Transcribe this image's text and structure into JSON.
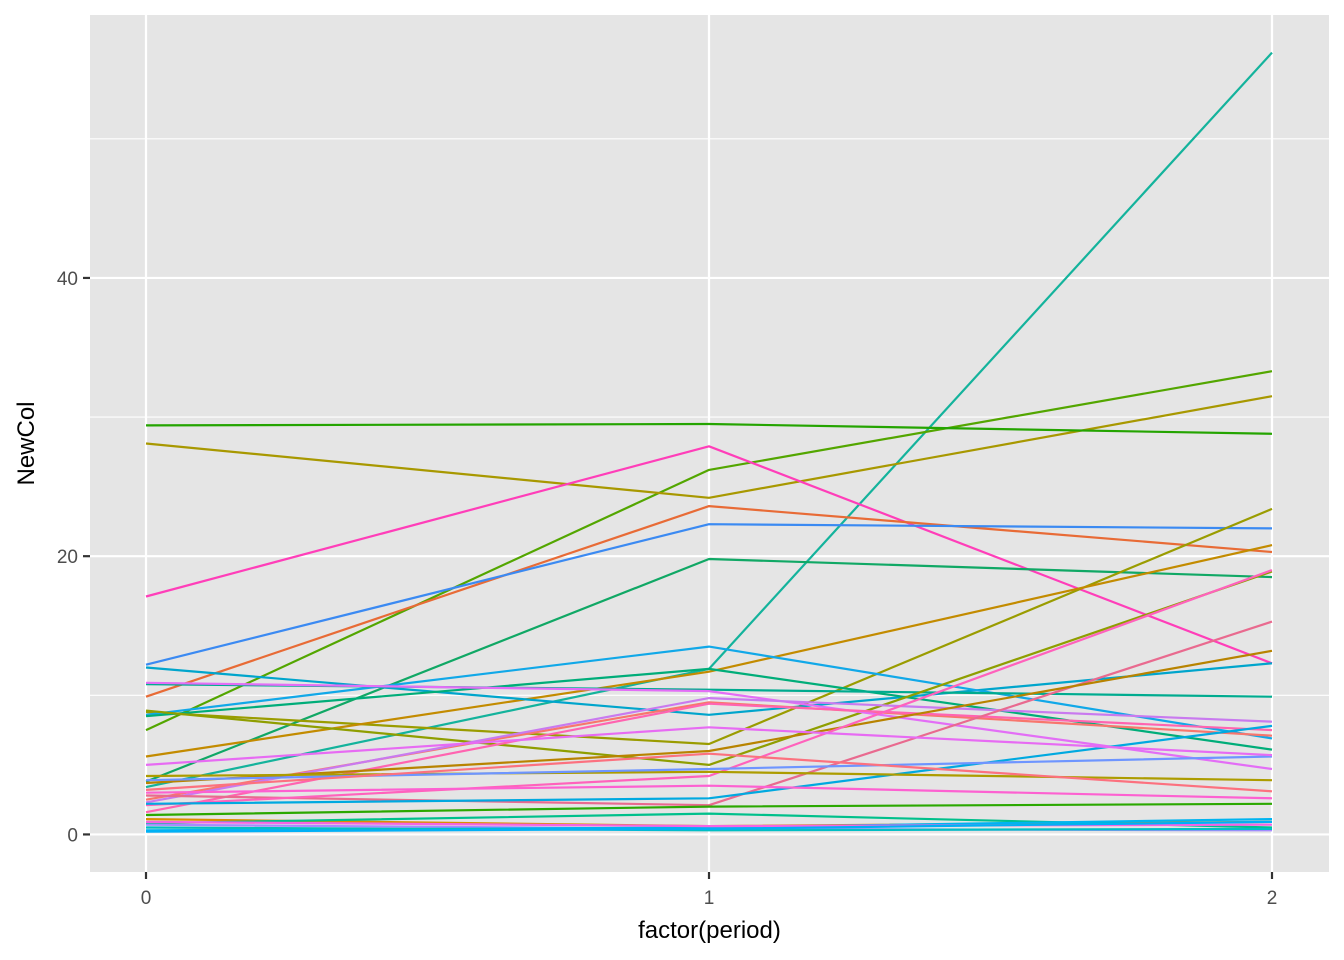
{
  "chart_data": {
    "type": "line",
    "title": "",
    "xlabel": "factor(period)",
    "ylabel": "NewCol",
    "categories": [
      "0",
      "1",
      "2"
    ],
    "ylim": [
      -2.7,
      58.9
    ],
    "yticks": [
      0,
      20,
      40
    ],
    "grid": true,
    "legend": "none",
    "colors": {
      "panel_background": "#e5e5e5",
      "grid_line": "#ffffff",
      "tick_mark": "#333333",
      "tick_label": "#4d4d4d"
    },
    "series": [
      {
        "color": "#14b39c",
        "values": [
          3.4,
          11.9,
          56.2
        ]
      },
      {
        "color": "#53a600",
        "values": [
          7.5,
          26.2,
          33.3
        ]
      },
      {
        "color": "#a89800",
        "values": [
          28.1,
          24.2,
          31.5
        ]
      },
      {
        "color": "#24a400",
        "values": [
          29.4,
          29.5,
          28.8
        ]
      },
      {
        "color": "#ff3eb9",
        "values": [
          17.1,
          27.9,
          12.3
        ]
      },
      {
        "color": "#e86b36",
        "values": [
          9.9,
          23.6,
          20.3
        ]
      },
      {
        "color": "#3b8af2",
        "values": [
          12.2,
          22.3,
          22.0
        ]
      },
      {
        "color": "#10a865",
        "values": [
          3.8,
          19.8,
          18.5
        ]
      },
      {
        "color": "#9a9c00",
        "values": [
          8.8,
          6.5,
          23.4
        ]
      },
      {
        "color": "#c38b00",
        "values": [
          5.6,
          11.7,
          20.8
        ]
      },
      {
        "color": "#00a5cc",
        "values": [
          12.0,
          8.6,
          12.3
        ]
      },
      {
        "color": "#11a8e8",
        "values": [
          8.6,
          13.5,
          6.9
        ]
      },
      {
        "color": "#00ad79",
        "values": [
          8.5,
          11.9,
          6.1
        ]
      },
      {
        "color": "#00ab8f",
        "values": [
          10.8,
          10.4,
          9.9
        ]
      },
      {
        "color": "#8f9e00",
        "values": [
          8.9,
          5.0,
          18.9
        ]
      },
      {
        "color": "#f8766d",
        "values": [
          2.5,
          9.5,
          7.1
        ]
      },
      {
        "color": "#e36ef6",
        "values": [
          10.9,
          10.3,
          4.7
        ]
      },
      {
        "color": "#c97aef",
        "values": [
          2.3,
          9.8,
          8.1
        ]
      },
      {
        "color": "#ff64b0",
        "values": [
          1.6,
          9.4,
          7.5
        ]
      },
      {
        "color": "#e96a8f",
        "values": [
          2.8,
          2.1,
          15.3
        ]
      },
      {
        "color": "#b88300",
        "values": [
          3.7,
          6.0,
          13.2
        ]
      },
      {
        "color": "#ff62bc",
        "values": [
          2.1,
          4.2,
          19.0
        ]
      },
      {
        "color": "#00a9e0",
        "values": [
          2.2,
          2.6,
          7.8
        ]
      },
      {
        "color": "#ad9c00",
        "values": [
          4.2,
          4.5,
          3.9
        ]
      },
      {
        "color": "#6e95ff",
        "values": [
          3.9,
          4.7,
          5.6
        ]
      },
      {
        "color": "#2ba800",
        "values": [
          1.4,
          2.0,
          2.2
        ]
      },
      {
        "color": "#db8e00",
        "values": [
          1.1,
          0.6,
          0.9
        ]
      },
      {
        "color": "#00c08b",
        "values": [
          0.8,
          1.5,
          0.5
        ]
      },
      {
        "color": "#fd61d1",
        "values": [
          3.0,
          3.5,
          2.6
        ]
      },
      {
        "color": "#a58aff",
        "values": [
          0.7,
          0.4,
          0.3
        ]
      },
      {
        "color": "#00b4f0",
        "values": [
          0.3,
          0.5,
          1.1
        ]
      },
      {
        "color": "#00bfc4",
        "values": [
          0.5,
          0.3,
          0.4
        ]
      },
      {
        "color": "#f564e3",
        "values": [
          0.9,
          0.6,
          0.7
        ]
      },
      {
        "color": "#00b0f6",
        "values": [
          0.2,
          0.4,
          0.9
        ]
      },
      {
        "color": "#e76bf3",
        "values": [
          5.0,
          7.7,
          5.7
        ]
      },
      {
        "color": "#fc717f",
        "values": [
          3.2,
          5.8,
          3.1
        ]
      }
    ]
  }
}
